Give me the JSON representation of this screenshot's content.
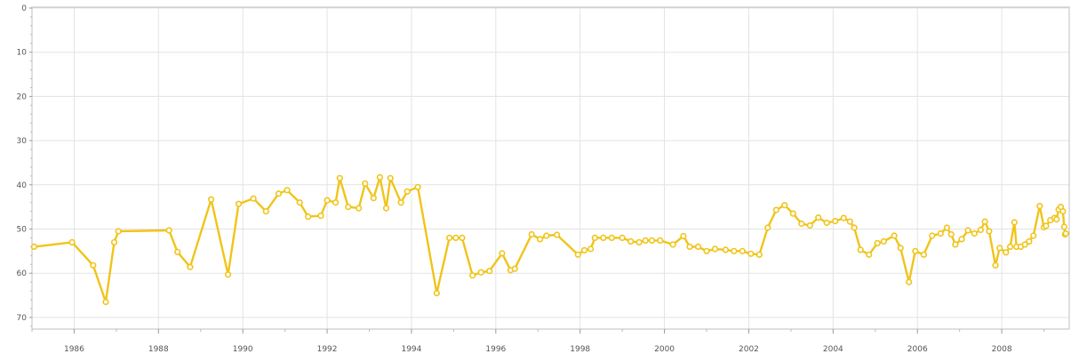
{
  "chart_data": {
    "type": "line",
    "title": "",
    "xlabel": "",
    "ylabel": "",
    "y_inverted": true,
    "ylim": [
      0,
      73
    ],
    "xlim": [
      1985.0,
      2009.6
    ],
    "y_ticks": [
      "0",
      "10",
      "20",
      "30",
      "40",
      "50",
      "60",
      "70"
    ],
    "x_ticks": [
      "1986",
      "1988",
      "1990",
      "1992",
      "1994",
      "1996",
      "1998",
      "2000",
      "2002",
      "2004",
      "2006",
      "2008"
    ],
    "grid": true,
    "line_color": "#f0c419",
    "series": [
      {
        "name": "",
        "points": [
          [
            1985.05,
            54.0
          ],
          [
            1985.95,
            53.0
          ],
          [
            1986.45,
            58.2
          ],
          [
            1986.75,
            66.5
          ],
          [
            1986.95,
            53.0
          ],
          [
            1987.05,
            50.5
          ],
          [
            1988.25,
            50.3
          ],
          [
            1988.45,
            55.2
          ],
          [
            1988.75,
            58.6
          ],
          [
            1989.25,
            43.3
          ],
          [
            1989.65,
            60.3
          ],
          [
            1989.9,
            44.3
          ],
          [
            1990.25,
            43.1
          ],
          [
            1990.55,
            46.0
          ],
          [
            1990.85,
            42.0
          ],
          [
            1991.05,
            41.2
          ],
          [
            1991.35,
            44.0
          ],
          [
            1991.55,
            47.2
          ],
          [
            1991.85,
            47.0
          ],
          [
            1992.0,
            43.5
          ],
          [
            1992.2,
            44.0
          ],
          [
            1992.3,
            38.5
          ],
          [
            1992.5,
            45.0
          ],
          [
            1992.75,
            45.3
          ],
          [
            1992.9,
            39.7
          ],
          [
            1993.1,
            43.0
          ],
          [
            1993.25,
            38.3
          ],
          [
            1993.4,
            45.3
          ],
          [
            1993.5,
            38.5
          ],
          [
            1993.75,
            44.0
          ],
          [
            1993.9,
            41.5
          ],
          [
            1994.15,
            40.5
          ],
          [
            1994.6,
            64.5
          ],
          [
            1994.9,
            52.0
          ],
          [
            1995.05,
            52.0
          ],
          [
            1995.2,
            52.0
          ],
          [
            1995.45,
            60.5
          ],
          [
            1995.65,
            59.8
          ],
          [
            1995.85,
            59.5
          ],
          [
            1996.15,
            55.5
          ],
          [
            1996.35,
            59.3
          ],
          [
            1996.45,
            59.0
          ],
          [
            1996.85,
            51.2
          ],
          [
            1997.05,
            52.3
          ],
          [
            1997.2,
            51.5
          ],
          [
            1997.45,
            51.3
          ],
          [
            1997.95,
            55.8
          ],
          [
            1998.1,
            54.8
          ],
          [
            1998.25,
            54.5
          ],
          [
            1998.35,
            52.0
          ],
          [
            1998.55,
            52.0
          ],
          [
            1998.75,
            52.0
          ],
          [
            1999.0,
            52.0
          ],
          [
            1999.2,
            52.8
          ],
          [
            1999.4,
            53.0
          ],
          [
            1999.55,
            52.6
          ],
          [
            1999.7,
            52.6
          ],
          [
            1999.9,
            52.6
          ],
          [
            2000.2,
            53.5
          ],
          [
            2000.45,
            51.6
          ],
          [
            2000.6,
            54.0
          ],
          [
            2000.8,
            54.0
          ],
          [
            2001.0,
            55.0
          ],
          [
            2001.2,
            54.5
          ],
          [
            2001.45,
            54.7
          ],
          [
            2001.65,
            55.0
          ],
          [
            2001.85,
            55.0
          ],
          [
            2002.05,
            55.6
          ],
          [
            2002.25,
            55.8
          ],
          [
            2002.45,
            49.7
          ],
          [
            2002.65,
            45.7
          ],
          [
            2002.85,
            44.6
          ],
          [
            2003.05,
            46.5
          ],
          [
            2003.25,
            48.8
          ],
          [
            2003.45,
            49.2
          ],
          [
            2003.65,
            47.4
          ],
          [
            2003.85,
            48.6
          ],
          [
            2004.05,
            48.2
          ],
          [
            2004.25,
            47.5
          ],
          [
            2004.4,
            48.3
          ],
          [
            2004.5,
            49.7
          ],
          [
            2004.65,
            54.7
          ],
          [
            2004.85,
            55.8
          ],
          [
            2005.05,
            53.2
          ],
          [
            2005.2,
            52.8
          ],
          [
            2005.45,
            51.5
          ],
          [
            2005.6,
            54.3
          ],
          [
            2005.8,
            62.0
          ],
          [
            2005.95,
            55.0
          ],
          [
            2006.15,
            55.8
          ],
          [
            2006.35,
            51.5
          ],
          [
            2006.55,
            51.0
          ],
          [
            2006.7,
            49.7
          ],
          [
            2006.8,
            51.2
          ],
          [
            2006.9,
            53.5
          ],
          [
            2007.05,
            52.3
          ],
          [
            2007.2,
            50.3
          ],
          [
            2007.35,
            51.0
          ],
          [
            2007.5,
            50.2
          ],
          [
            2007.6,
            48.3
          ],
          [
            2007.7,
            50.5
          ],
          [
            2007.85,
            58.2
          ],
          [
            2007.95,
            54.3
          ],
          [
            2008.1,
            55.3
          ],
          [
            2008.2,
            54.0
          ],
          [
            2008.3,
            48.5
          ],
          [
            2008.35,
            54.0
          ],
          [
            2008.45,
            54.0
          ],
          [
            2008.55,
            53.5
          ],
          [
            2008.65,
            52.8
          ],
          [
            2008.75,
            51.5
          ],
          [
            2008.9,
            44.8
          ],
          [
            2009.0,
            49.6
          ],
          [
            2009.05,
            49.3
          ],
          [
            2009.15,
            48.0
          ],
          [
            2009.25,
            47.5
          ],
          [
            2009.3,
            47.8
          ],
          [
            2009.35,
            45.6
          ],
          [
            2009.4,
            45.0
          ],
          [
            2009.45,
            46.0
          ],
          [
            2009.48,
            49.5
          ],
          [
            2009.5,
            51.2
          ],
          [
            2009.52,
            51.0
          ]
        ]
      }
    ]
  }
}
